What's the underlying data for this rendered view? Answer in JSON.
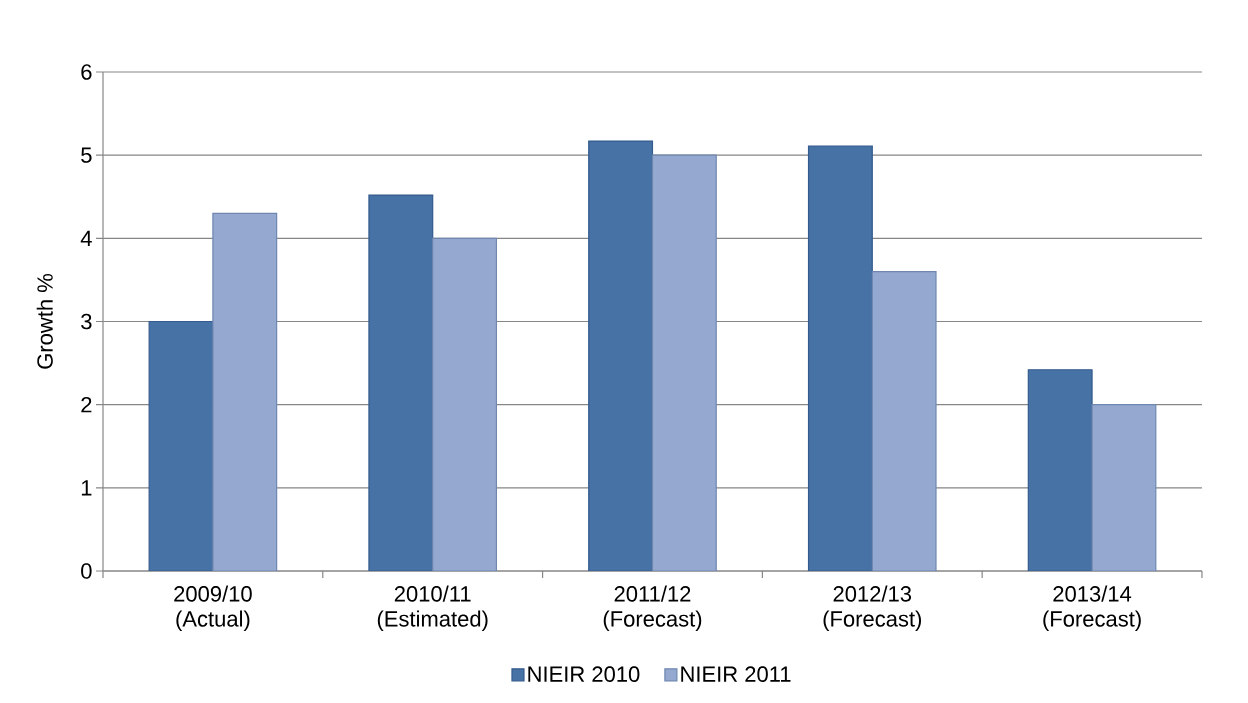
{
  "chart_data": {
    "type": "bar",
    "ylabel": "Growth %",
    "categories": [
      "2009/10 (Actual)",
      "2010/11 (Estimated)",
      "2011/12 (Forecast)",
      "2012/13 (Forecast)",
      "2013/14 (Forecast)"
    ],
    "series": [
      {
        "name": "NIEIR 2010",
        "color": "#4672a6",
        "values": [
          3.0,
          4.52,
          5.17,
          5.11,
          2.42
        ]
      },
      {
        "name": "NIEIR 2011",
        "color": "#95a9d0",
        "values": [
          4.3,
          4.0,
          5.0,
          3.6,
          2.0
        ]
      }
    ],
    "ylim": [
      0,
      6
    ],
    "yticks": [
      0,
      1,
      2,
      3,
      4,
      5,
      6
    ],
    "grid": "y",
    "legend": "bottom"
  }
}
